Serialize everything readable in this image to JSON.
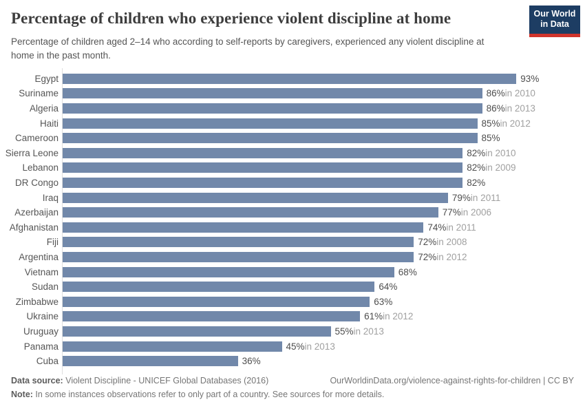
{
  "logo": {
    "line1": "Our World",
    "line2": "in Data",
    "bg_color": "#1d3d63",
    "accent_color": "#d0342c"
  },
  "chart_data": {
    "type": "bar",
    "orientation": "horizontal",
    "title": "Percentage of children who experience violent discipline at home",
    "subtitle": "Percentage of children aged 2–14 who according to self-reports by caregivers, experienced any violent discipline at home in the past month.",
    "categories": [
      "Egypt",
      "Suriname",
      "Algeria",
      "Haiti",
      "Cameroon",
      "Sierra Leone",
      "Lebanon",
      "DR Congo",
      "Iraq",
      "Azerbaijan",
      "Afghanistan",
      "Fiji",
      "Argentina",
      "Vietnam",
      "Sudan",
      "Zimbabwe",
      "Ukraine",
      "Uruguay",
      "Panama",
      "Cuba"
    ],
    "values": [
      93,
      86,
      86,
      85,
      85,
      82,
      82,
      82,
      79,
      77,
      74,
      72,
      72,
      68,
      64,
      63,
      61,
      55,
      45,
      36
    ],
    "year_notes": [
      "",
      "in 2010",
      "in 2013",
      "in 2012",
      "",
      "in 2010",
      "in 2009",
      "",
      "in 2011",
      "in 2006",
      "in 2011",
      "in 2008",
      "in 2012",
      "",
      "",
      "",
      "in 2012",
      "in 2013",
      "in 2013",
      ""
    ],
    "value_suffix": "%",
    "xlim": [
      0,
      100
    ],
    "grid": false,
    "legend": "none",
    "bar_color": "#7188aa",
    "value_color": "#4d4d4d",
    "year_color": "#a0a0a0"
  },
  "footer": {
    "datasource_label": "Data source:",
    "datasource_text": " Violent Discipline - UNICEF Global Databases (2016)",
    "url_text": "OurWorldinData.org/violence-against-rights-for-children | CC BY",
    "note_label": "Note:",
    "note_text": " In some instances observations refer to only part of a country. See sources for more details."
  }
}
